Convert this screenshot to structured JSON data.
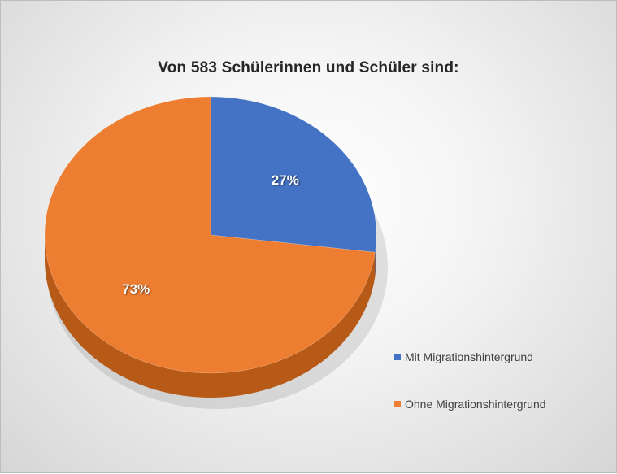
{
  "chart_data": {
    "type": "pie",
    "title": "Von 583 Schülerinnen und Schüler sind:",
    "slices": [
      {
        "label": "Mit Migrationshintergrund",
        "value": 27,
        "display": "27%",
        "color": "#4472c4",
        "side_color": "#2f5597"
      },
      {
        "label": "Ohne Migrationshintergrund",
        "value": 73,
        "display": "73%",
        "color": "#ed7d31",
        "side_color": "#b85a17"
      }
    ],
    "legend_position": "right"
  }
}
